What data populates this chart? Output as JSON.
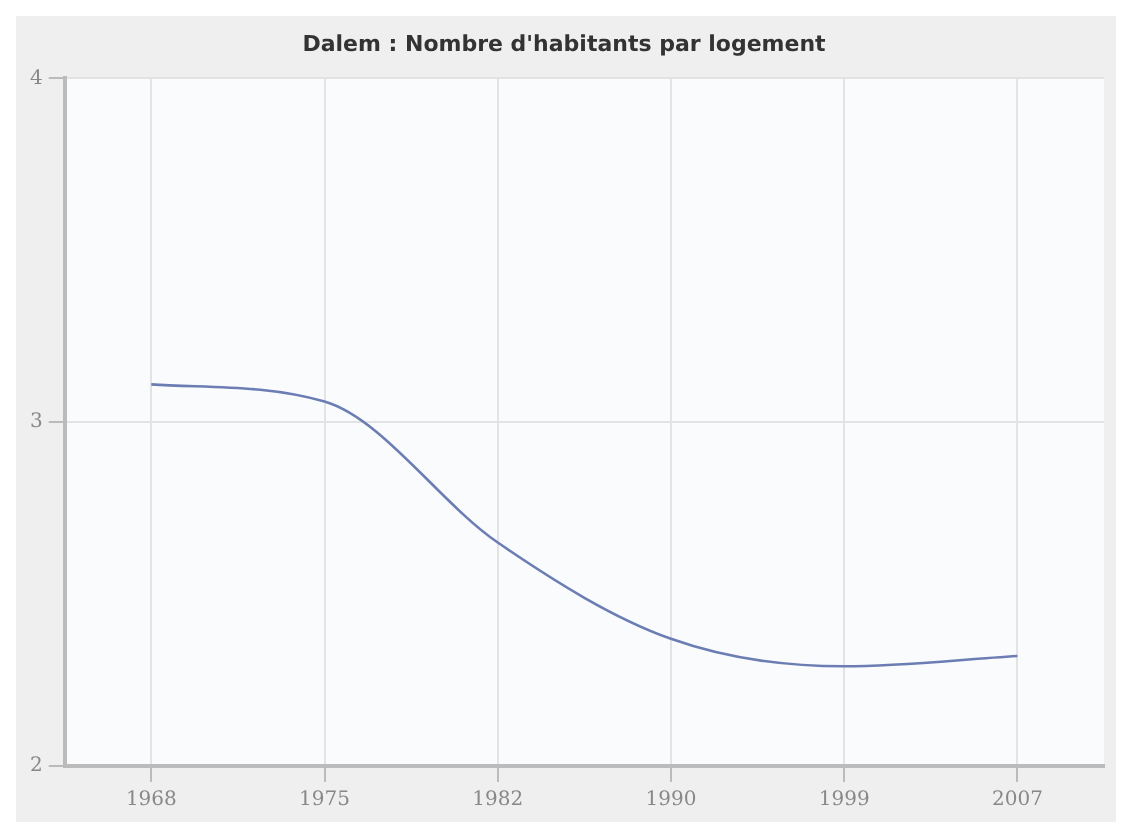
{
  "chart_data": {
    "type": "line",
    "title": "Dalem : Nombre d'habitants par logement",
    "categories": [
      "1968",
      "1975",
      "1982",
      "1990",
      "1999",
      "2007"
    ],
    "series": [
      {
        "color": "#6b7db3",
        "values": [
          3.11,
          3.06,
          2.65,
          2.37,
          2.29,
          2.32
        ]
      }
    ],
    "ylim": [
      2,
      4
    ],
    "yticks": [
      2,
      3,
      4
    ],
    "grid": true,
    "legend": false,
    "marker": "none"
  }
}
